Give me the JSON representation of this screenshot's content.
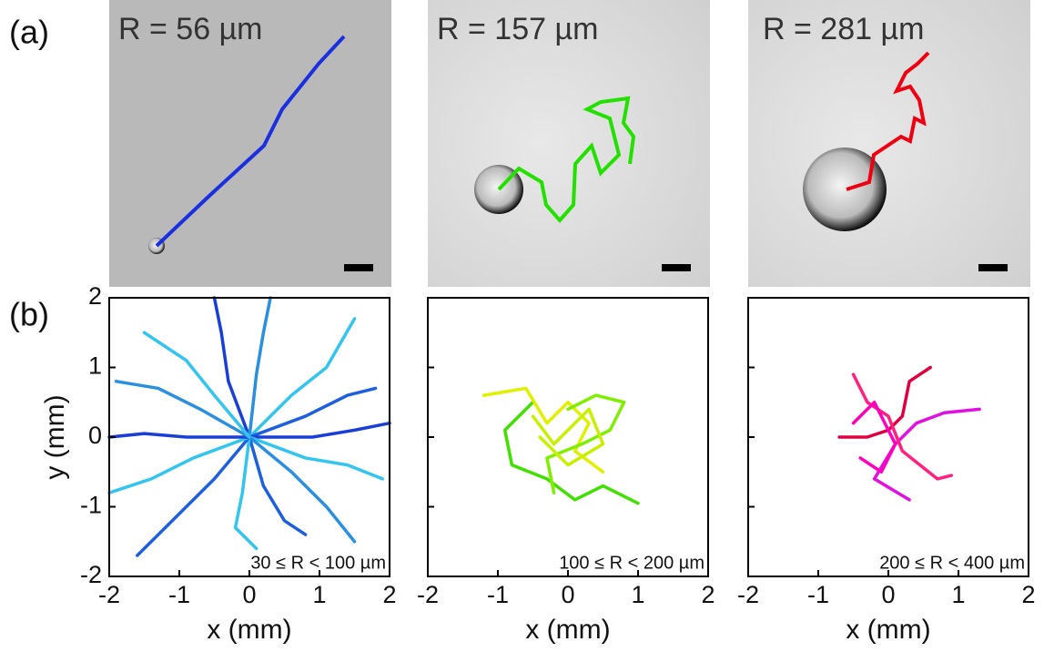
{
  "panels": {
    "a": "(a)",
    "b": "(b)"
  },
  "images": [
    {
      "label": "R = 56 µm"
    },
    {
      "label": "R = 157 µm"
    },
    {
      "label": "R = 281 µm"
    }
  ],
  "chart_data": [
    {
      "type": "line",
      "xlabel": "x (mm)",
      "ylabel": "y (mm)",
      "annotation": "30 ≤ R < 100 µm",
      "xlim": [
        -2,
        2
      ],
      "ylim": [
        -2,
        2
      ],
      "xticks": [
        -2,
        -1,
        0,
        1,
        2
      ],
      "yticks": [
        -2,
        -1,
        0,
        1,
        2
      ],
      "show_ytick_labels": true,
      "series": [
        {
          "color": "#1a3fd6",
          "x": [
            0,
            -0.3,
            -0.4,
            -0.5
          ],
          "values": [
            0,
            0.8,
            1.5,
            2.0
          ]
        },
        {
          "color": "#2a8fe0",
          "x": [
            0,
            0.1,
            0.2,
            0.3
          ],
          "values": [
            0,
            0.9,
            1.5,
            2.0
          ]
        },
        {
          "color": "#33c4f0",
          "x": [
            0,
            0.6,
            1.1,
            1.5
          ],
          "values": [
            0,
            0.6,
            1.0,
            1.7
          ]
        },
        {
          "color": "#1e5fe0",
          "x": [
            0,
            0.8,
            1.4,
            1.8
          ],
          "values": [
            0,
            0.3,
            0.6,
            0.7
          ]
        },
        {
          "color": "#1a3fd6",
          "x": [
            0,
            0.9,
            1.5,
            2.0
          ],
          "values": [
            0,
            0,
            0.1,
            0.2
          ]
        },
        {
          "color": "#33c4f0",
          "x": [
            0,
            0.8,
            1.4,
            1.9
          ],
          "values": [
            0,
            -0.3,
            -0.4,
            -0.6
          ]
        },
        {
          "color": "#2a8fe0",
          "x": [
            0,
            0.6,
            1.1,
            1.5
          ],
          "values": [
            0,
            -0.5,
            -1.0,
            -1.5
          ]
        },
        {
          "color": "#1e5fe0",
          "x": [
            0,
            0.2,
            0.5,
            0.8
          ],
          "values": [
            0,
            -0.7,
            -1.2,
            -1.4
          ]
        },
        {
          "color": "#33c4f0",
          "x": [
            0,
            -0.1,
            -0.2,
            0.1
          ],
          "values": [
            0,
            -0.8,
            -1.3,
            -1.6
          ]
        },
        {
          "color": "#1e5fe0",
          "x": [
            0,
            -0.5,
            -1.0,
            -1.6
          ],
          "values": [
            0,
            -0.6,
            -1.1,
            -1.7
          ]
        },
        {
          "color": "#33c4f0",
          "x": [
            0,
            -0.8,
            -1.4,
            -2.0
          ],
          "values": [
            0,
            -0.3,
            -0.6,
            -0.8
          ]
        },
        {
          "color": "#1a3fd6",
          "x": [
            0,
            -0.9,
            -1.5,
            -2.0
          ],
          "values": [
            0,
            0,
            0.05,
            0
          ]
        },
        {
          "color": "#2a8fe0",
          "x": [
            0,
            -0.7,
            -1.3,
            -1.9
          ],
          "values": [
            0,
            0.4,
            0.7,
            0.8
          ]
        },
        {
          "color": "#33c4f0",
          "x": [
            0,
            -0.5,
            -0.9,
            -1.5
          ],
          "values": [
            0,
            0.6,
            1.1,
            1.5
          ]
        }
      ]
    },
    {
      "type": "line",
      "xlabel": "x (mm)",
      "annotation": "100 ≤ R < 200 µm",
      "xlim": [
        -2,
        2
      ],
      "ylim": [
        -2,
        2
      ],
      "xticks": [
        -2,
        -1,
        0,
        1,
        2
      ],
      "yticks": [
        -2,
        -1,
        0,
        1,
        2
      ],
      "show_ytick_labels": false,
      "series": [
        {
          "color": "#40e000",
          "x": [
            -0.5,
            -0.9,
            -0.8,
            -0.3,
            0.1,
            0.5,
            1.0
          ],
          "values": [
            0.5,
            0.1,
            -0.4,
            -0.6,
            -0.9,
            -0.7,
            -0.95
          ]
        },
        {
          "color": "#e0f000",
          "x": [
            -1.2,
            -0.6,
            -0.3,
            0,
            0.3,
            0.1,
            0.5
          ],
          "values": [
            0.6,
            0.7,
            0.2,
            0.5,
            0.2,
            -0.2,
            -0.5
          ]
        },
        {
          "color": "#80ee00",
          "x": [
            0,
            0.4,
            0.8,
            0.6,
            0.2,
            -0.3,
            -0.2
          ],
          "values": [
            0.4,
            0.6,
            0.5,
            0.1,
            -0.1,
            -0.3,
            -0.8
          ]
        },
        {
          "color": "#c8f000",
          "x": [
            -0.5,
            -0.2,
            0.3,
            0.5,
            0,
            -0.4
          ],
          "values": [
            0.3,
            -0.1,
            0.4,
            -0.1,
            -0.4,
            0
          ]
        }
      ]
    },
    {
      "type": "line",
      "xlabel": "x (mm)",
      "annotation": "200 ≤ R < 400 µm",
      "xlim": [
        -2,
        2
      ],
      "ylim": [
        -2,
        2
      ],
      "xticks": [
        -2,
        -1,
        0,
        1,
        2
      ],
      "yticks": [
        -2,
        -1,
        0,
        1,
        2
      ],
      "show_ytick_labels": false,
      "series": [
        {
          "color": "#e00040",
          "x": [
            0.6,
            0.3,
            0.2,
            0,
            -0.3,
            -0.7
          ],
          "values": [
            1.0,
            0.8,
            0.3,
            0.1,
            0,
            0
          ]
        },
        {
          "color": "#e010e0",
          "x": [
            1.3,
            0.8,
            0.4,
            0.1,
            -0.2,
            0.3
          ],
          "values": [
            0.4,
            0.35,
            0.2,
            -0.1,
            -0.6,
            -0.9
          ]
        },
        {
          "color": "#ff2080",
          "x": [
            -0.5,
            -0.3,
            0,
            0.2,
            0.7,
            0.9
          ],
          "values": [
            0.9,
            0.5,
            0.3,
            -0.2,
            -0.6,
            -0.55
          ]
        },
        {
          "color": "#ff00c0",
          "x": [
            -0.4,
            -0.1,
            0.1,
            -0.2,
            -0.5
          ],
          "values": [
            -0.3,
            -0.5,
            -0.1,
            0.5,
            0.2
          ]
        }
      ]
    }
  ]
}
